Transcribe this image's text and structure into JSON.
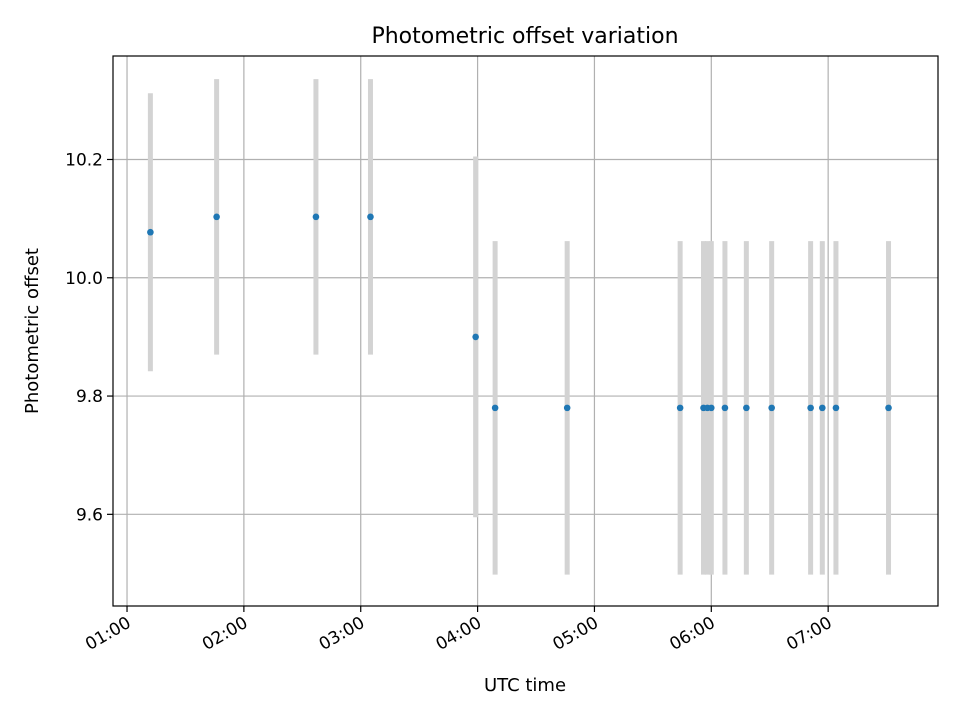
{
  "chart_data": {
    "type": "scatter",
    "title": "Photometric offset variation",
    "xlabel": "UTC time",
    "ylabel": "Photometric offset",
    "x_tick_labels": [
      "01:00",
      "02:00",
      "03:00",
      "04:00",
      "05:00",
      "06:00",
      "07:00"
    ],
    "x_tick_hours": [
      1,
      2,
      3,
      4,
      5,
      6,
      7
    ],
    "y_tick_labels": [
      "9.6",
      "9.8",
      "10.0",
      "10.2"
    ],
    "y_tick_values": [
      9.6,
      9.8,
      10.0,
      10.2
    ],
    "xlim_hours": [
      0.88,
      7.94
    ],
    "ylim": [
      9.445,
      10.375
    ],
    "grid": true,
    "marker_color": "#1f77b4",
    "errorbar_color": "#d3d3d3",
    "series": [
      {
        "points": [
          {
            "time": "01:12",
            "y": 10.077,
            "err": 0.235
          },
          {
            "time": "01:46",
            "y": 10.103,
            "err": 0.233
          },
          {
            "time": "02:37",
            "y": 10.103,
            "err": 0.233
          },
          {
            "time": "03:05",
            "y": 10.103,
            "err": 0.233
          },
          {
            "time": "03:59",
            "y": 9.9,
            "err": 0.305
          },
          {
            "time": "04:09",
            "y": 9.78,
            "err": 0.282
          },
          {
            "time": "04:46",
            "y": 9.78,
            "err": 0.282
          },
          {
            "time": "05:44",
            "y": 9.78,
            "err": 0.282
          },
          {
            "time": "05:56",
            "y": 9.78,
            "err": 0.282
          },
          {
            "time": "05:58",
            "y": 9.78,
            "err": 0.282
          },
          {
            "time": "06:00",
            "y": 9.78,
            "err": 0.282
          },
          {
            "time": "06:07",
            "y": 9.78,
            "err": 0.282
          },
          {
            "time": "06:18",
            "y": 9.78,
            "err": 0.282
          },
          {
            "time": "06:31",
            "y": 9.78,
            "err": 0.282
          },
          {
            "time": "06:51",
            "y": 9.78,
            "err": 0.282
          },
          {
            "time": "06:57",
            "y": 9.78,
            "err": 0.282
          },
          {
            "time": "07:04",
            "y": 9.78,
            "err": 0.282
          },
          {
            "time": "07:31",
            "y": 9.78,
            "err": 0.282
          }
        ]
      }
    ]
  }
}
